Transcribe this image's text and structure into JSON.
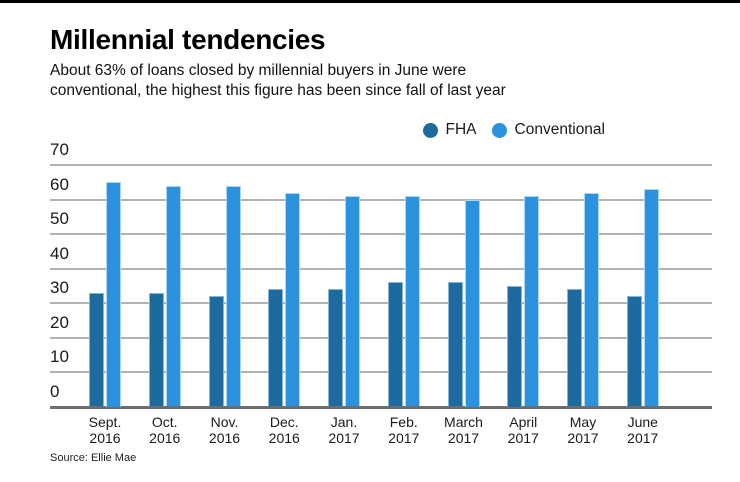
{
  "header": {
    "title": "Millennial tendencies",
    "subtitle_lines": [
      "About 63% of loans closed by millennial buyers in June were",
      "conventional, the highest this figure has been since fall of last year"
    ]
  },
  "legend": [
    {
      "label": "FHA",
      "color": "#1d6a9e"
    },
    {
      "label": "Conventional",
      "color": "#2b92de"
    }
  ],
  "chart_data": {
    "type": "bar",
    "title": "Millennial tendencies",
    "categories": [
      "Sept. 2016",
      "Oct. 2016",
      "Nov. 2016",
      "Dec. 2016",
      "Jan. 2017",
      "Feb. 2017",
      "March 2017",
      "April 2017",
      "May 2017",
      "June 2017"
    ],
    "series": [
      {
        "name": "FHA",
        "color": "#1d6a9e",
        "values": [
          33,
          33,
          32,
          34,
          34,
          36,
          36,
          35,
          34,
          32
        ]
      },
      {
        "name": "Conventional",
        "color": "#2b92de",
        "values": [
          65,
          64,
          64,
          62,
          61,
          61,
          60,
          61,
          62,
          63
        ]
      }
    ],
    "xlabel": "",
    "ylabel": "",
    "ylim": [
      0,
      70
    ],
    "yticks": [
      70,
      60,
      50,
      40,
      30,
      20,
      10,
      0
    ],
    "grid": true,
    "legend_position": "top-right"
  },
  "colors": {
    "gridline": "#b2b2b2",
    "axis": "#6d6d6d",
    "fha_bar_edge": "rgba(150,195,225,0.85)",
    "conventional_bar_edge": "rgba(185,222,247,0.9)"
  },
  "source": "Source: Ellie Mae"
}
